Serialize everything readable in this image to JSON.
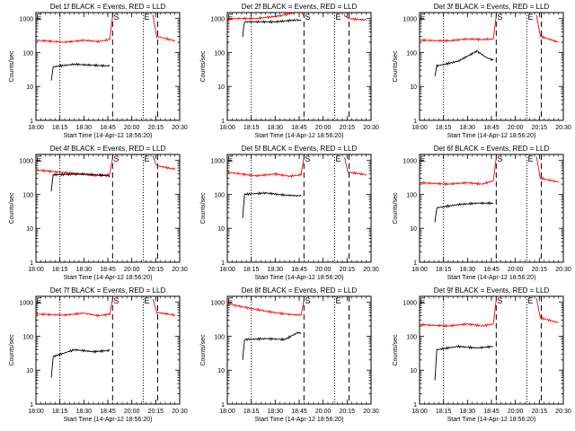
{
  "figure": {
    "ylabel": "Counts/sec",
    "xlabel": "Start Time (14-Apr-12 18:56:20)",
    "xticks": [
      "18:00",
      "18:15",
      "18:30",
      "18:45",
      "20:00",
      "20:15",
      "20:30"
    ],
    "yticks": [
      "1",
      "10",
      "100",
      "1000"
    ],
    "colors": {
      "events": "#000000",
      "lld": "#ff0000",
      "frame": "#000000"
    }
  },
  "chart_data": [
    {
      "type": "line",
      "title": "Det 1f BLACK = Events, RED = LLD",
      "flags": [
        "E",
        "S",
        "E"
      ],
      "series": [
        {
          "color": "#ff0000",
          "segments": [
            [
              [
                0.0,
                230
              ],
              [
                0.3,
                200
              ],
              [
                0.5,
                230
              ],
              [
                0.65,
                210
              ],
              [
                0.77,
                240
              ],
              [
                0.8,
                1200
              ]
            ],
            [
              [
                1.22,
                1300
              ],
              [
                1.26,
                300
              ],
              [
                1.45,
                220
              ]
            ]
          ]
        },
        {
          "color": "#000000",
          "segments": [
            [
              [
                0.16,
                14
              ],
              [
                0.18,
                38
              ],
              [
                0.4,
                45
              ],
              [
                0.6,
                42
              ],
              [
                0.77,
                40
              ]
            ]
          ]
        }
      ]
    },
    {
      "type": "line",
      "title": "Det 2f BLACK = Events, RED = LLD",
      "flags": [
        "E",
        "S",
        "E"
      ],
      "series": [
        {
          "color": "#ff0000",
          "segments": [
            [
              [
                0.0,
                1000
              ],
              [
                0.3,
                1000
              ],
              [
                0.55,
                1200
              ],
              [
                0.7,
                1500
              ],
              [
                0.77,
                1600
              ],
              [
                0.8,
                1200
              ]
            ],
            [
              [
                1.22,
                1300
              ],
              [
                1.26,
                1000
              ],
              [
                1.45,
                900
              ]
            ]
          ]
        },
        {
          "color": "#000000",
          "segments": [
            [
              [
                0.16,
                300
              ],
              [
                0.18,
                800
              ],
              [
                0.5,
                800
              ],
              [
                0.7,
                900
              ],
              [
                0.77,
                900
              ]
            ]
          ]
        }
      ]
    },
    {
      "type": "line",
      "title": "Det 3f BLACK = Events, RED = LLD",
      "flags": [
        "E",
        "S",
        "E"
      ],
      "series": [
        {
          "color": "#ff0000",
          "segments": [
            [
              [
                0.0,
                230
              ],
              [
                0.3,
                220
              ],
              [
                0.5,
                250
              ],
              [
                0.65,
                240
              ],
              [
                0.77,
                250
              ],
              [
                0.8,
                1200
              ]
            ],
            [
              [
                1.22,
                1300
              ],
              [
                1.26,
                300
              ],
              [
                1.45,
                200
              ]
            ]
          ]
        },
        {
          "color": "#000000",
          "segments": [
            [
              [
                0.16,
                20
              ],
              [
                0.18,
                40
              ],
              [
                0.4,
                55
              ],
              [
                0.6,
                110
              ],
              [
                0.7,
                70
              ],
              [
                0.77,
                60
              ]
            ]
          ]
        }
      ]
    },
    {
      "type": "line",
      "title": "Det 4f BLACK = Events, RED = LLD",
      "flags": [
        "E",
        "S",
        "E"
      ],
      "series": [
        {
          "color": "#ff0000",
          "segments": [
            [
              [
                0.0,
                520
              ],
              [
                0.3,
                440
              ],
              [
                0.6,
                360
              ],
              [
                0.77,
                380
              ],
              [
                0.8,
                1200
              ]
            ],
            [
              [
                1.22,
                1300
              ],
              [
                1.26,
                700
              ],
              [
                1.45,
                550
              ]
            ]
          ]
        },
        {
          "color": "#000000",
          "segments": [
            [
              [
                0.16,
                130
              ],
              [
                0.18,
                380
              ],
              [
                0.5,
                400
              ],
              [
                0.77,
                350
              ]
            ]
          ]
        }
      ]
    },
    {
      "type": "line",
      "title": "Det 5f BLACK = Events, RED = LLD",
      "flags": [
        "E",
        "S",
        "E"
      ],
      "series": [
        {
          "color": "#ff0000",
          "segments": [
            [
              [
                0.0,
                450
              ],
              [
                0.3,
                350
              ],
              [
                0.5,
                400
              ],
              [
                0.65,
                340
              ],
              [
                0.77,
                380
              ],
              [
                0.8,
                1200
              ]
            ],
            [
              [
                1.22,
                1300
              ],
              [
                1.26,
                450
              ],
              [
                1.45,
                380
              ]
            ]
          ]
        },
        {
          "color": "#000000",
          "segments": [
            [
              [
                0.16,
                20
              ],
              [
                0.18,
                100
              ],
              [
                0.4,
                110
              ],
              [
                0.6,
                95
              ],
              [
                0.77,
                90
              ]
            ]
          ]
        }
      ]
    },
    {
      "type": "line",
      "title": "Det 6f BLACK = Events, RED = LLD",
      "flags": [
        "E",
        "S",
        "E"
      ],
      "series": [
        {
          "color": "#ff0000",
          "segments": [
            [
              [
                0.0,
                220
              ],
              [
                0.3,
                200
              ],
              [
                0.5,
                220
              ],
              [
                0.65,
                200
              ],
              [
                0.77,
                250
              ],
              [
                0.8,
                1200
              ]
            ],
            [
              [
                1.22,
                1300
              ],
              [
                1.26,
                300
              ],
              [
                1.45,
                230
              ]
            ]
          ]
        },
        {
          "color": "#000000",
          "segments": [
            [
              [
                0.16,
                15
              ],
              [
                0.18,
                40
              ],
              [
                0.4,
                50
              ],
              [
                0.6,
                55
              ],
              [
                0.77,
                55
              ]
            ]
          ]
        }
      ]
    },
    {
      "type": "line",
      "title": "Det 7f BLACK = Events, RED = LLD",
      "flags": [
        "E",
        "S",
        "E"
      ],
      "series": [
        {
          "color": "#ff0000",
          "segments": [
            [
              [
                0.0,
                450
              ],
              [
                0.3,
                420
              ],
              [
                0.5,
                480
              ],
              [
                0.65,
                400
              ],
              [
                0.77,
                450
              ],
              [
                0.8,
                1200
              ]
            ],
            [
              [
                1.22,
                1300
              ],
              [
                1.26,
                500
              ],
              [
                1.45,
                420
              ]
            ]
          ]
        },
        {
          "color": "#000000",
          "segments": [
            [
              [
                0.16,
                6
              ],
              [
                0.18,
                25
              ],
              [
                0.4,
                40
              ],
              [
                0.6,
                35
              ],
              [
                0.77,
                38
              ]
            ]
          ]
        }
      ]
    },
    {
      "type": "line",
      "title": "Det 8f BLACK = Events, RED = LLD",
      "flags": [
        "E",
        "S",
        "E"
      ],
      "series": [
        {
          "color": "#ff0000",
          "segments": [
            [
              [
                0.0,
                900
              ],
              [
                0.2,
                700
              ],
              [
                0.4,
                550
              ],
              [
                0.6,
                450
              ],
              [
                0.77,
                420
              ],
              [
                0.8,
                1200
              ]
            ]
          ]
        },
        {
          "color": "#000000",
          "segments": [
            [
              [
                0.16,
                20
              ],
              [
                0.18,
                80
              ],
              [
                0.4,
                85
              ],
              [
                0.6,
                80
              ],
              [
                0.74,
                130
              ],
              [
                0.77,
                120
              ]
            ]
          ]
        }
      ]
    },
    {
      "type": "line",
      "title": "Det 9f BLACK = Events, RED = LLD",
      "flags": [
        "E",
        "S",
        "E"
      ],
      "series": [
        {
          "color": "#ff0000",
          "segments": [
            [
              [
                0.0,
                220
              ],
              [
                0.3,
                200
              ],
              [
                0.5,
                230
              ],
              [
                0.65,
                200
              ],
              [
                0.77,
                230
              ],
              [
                0.8,
                1200
              ]
            ],
            [
              [
                1.22,
                1300
              ],
              [
                1.26,
                350
              ],
              [
                1.45,
                250
              ]
            ]
          ]
        },
        {
          "color": "#000000",
          "segments": [
            [
              [
                0.16,
                5
              ],
              [
                0.18,
                40
              ],
              [
                0.4,
                50
              ],
              [
                0.6,
                45
              ],
              [
                0.77,
                50
              ]
            ]
          ]
        }
      ]
    }
  ]
}
